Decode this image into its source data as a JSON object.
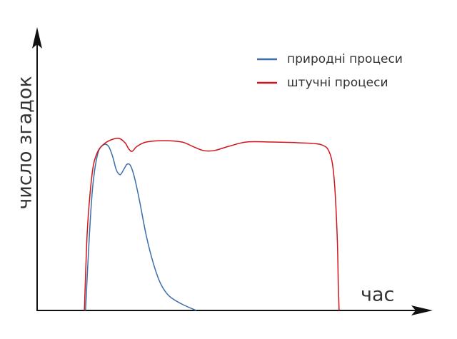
{
  "chart_data": {
    "type": "line",
    "x_label": "час",
    "y_label": "число згадок",
    "xlim": [
      0,
      100
    ],
    "ylim": [
      0,
      100
    ],
    "legend": "top-right",
    "series": [
      {
        "name": "природні процеси",
        "color": "#3a6eab",
        "x": [
          12.6,
          13.6,
          14.5,
          15.8,
          17.3,
          18.6,
          19.7,
          20.6,
          21.6,
          22.5,
          23.4,
          24.3,
          25.3,
          26.6,
          28.4,
          30.3,
          32.2,
          34.4,
          37.7,
          41.4
        ],
        "values": [
          0,
          27.3,
          45.5,
          57.1,
          60.3,
          59.7,
          55.8,
          51.2,
          49.4,
          51.2,
          53.2,
          52.7,
          48.6,
          40.3,
          27.3,
          16.9,
          9.6,
          5.2,
          2.3,
          0
        ]
      },
      {
        "name": "штучні процеси",
        "color": "#d0141b",
        "x": [
          12.3,
          13.0,
          13.8,
          14.7,
          16.0,
          17.8,
          19.7,
          21.4,
          22.9,
          23.8,
          24.7,
          26.0,
          28.4,
          33.1,
          37.7,
          40.5,
          43.3,
          46.1,
          49.8,
          54.5,
          61.0,
          68.4,
          74.0,
          76.2,
          77.3,
          78.1,
          78.4,
          78.6
        ],
        "values": [
          0,
          27.3,
          42.9,
          53.2,
          58.4,
          61.0,
          62.3,
          62.6,
          61.0,
          58.9,
          57.9,
          59.7,
          61.3,
          61.8,
          61.3,
          59.7,
          58.2,
          58.2,
          59.7,
          61.3,
          61.3,
          61.0,
          60.3,
          57.1,
          48.1,
          27.3,
          9.1,
          0
        ]
      }
    ]
  }
}
